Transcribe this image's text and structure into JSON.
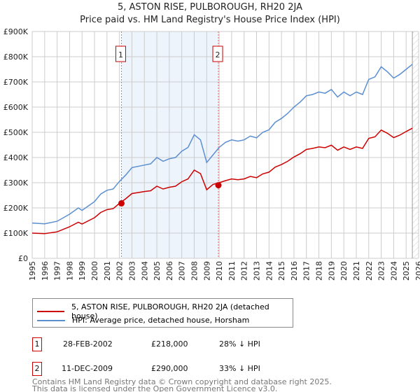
{
  "chart_data": {
    "type": "line",
    "title": "5, ASTON RISE, PULBOROUGH, RH20 2JA",
    "subtitle": "Price paid vs. HM Land Registry's House Price Index (HPI)",
    "xlim": [
      1995,
      2026
    ],
    "ylim": [
      0,
      900000
    ],
    "x_ticks": [
      "1995",
      "1996",
      "1997",
      "1998",
      "1999",
      "2000",
      "2001",
      "2002",
      "2003",
      "2004",
      "2005",
      "2006",
      "2007",
      "2008",
      "2009",
      "2010",
      "2011",
      "2012",
      "2013",
      "2014",
      "2015",
      "2016",
      "2017",
      "2018",
      "2019",
      "2020",
      "2021",
      "2022",
      "2023",
      "2024",
      "2025",
      "2026"
    ],
    "y_ticks": [
      {
        "v": 0,
        "label": "£0"
      },
      {
        "v": 100000,
        "label": "£100K"
      },
      {
        "v": 200000,
        "label": "£200K"
      },
      {
        "v": 300000,
        "label": "£300K"
      },
      {
        "v": 400000,
        "label": "£400K"
      },
      {
        "v": 500000,
        "label": "£500K"
      },
      {
        "v": 600000,
        "label": "£600K"
      },
      {
        "v": 700000,
        "label": "£700K"
      },
      {
        "v": 800000,
        "label": "£800K"
      },
      {
        "v": 900000,
        "label": "£900K"
      }
    ],
    "grid": true,
    "forecast_hatch_from": 2025.5,
    "shaded_range": [
      2002.16,
      2009.94
    ],
    "x": [
      1995,
      1996,
      1997,
      1998,
      1998.7,
      1999,
      2000,
      2000.5,
      2001,
      2001.5,
      2002,
      2002.5,
      2003,
      2004,
      2004.5,
      2005,
      2005.5,
      2006,
      2006.5,
      2007,
      2007.5,
      2008,
      2008.5,
      2009,
      2009.5,
      2010,
      2010.5,
      2011,
      2011.5,
      2012,
      2012.5,
      2013,
      2013.5,
      2014,
      2014.5,
      2015,
      2015.5,
      2016,
      2016.5,
      2017,
      2017.5,
      2018,
      2018.5,
      2019,
      2019.5,
      2020,
      2020.5,
      2021,
      2021.5,
      2022,
      2022.5,
      2023,
      2023.5,
      2024,
      2024.5,
      2025,
      2025.5
    ],
    "series": [
      {
        "name": "5, ASTON RISE, PULBOROUGH, RH20 2JA (detached house)",
        "color": "#cc0000",
        "values": [
          100,
          98,
          105,
          125,
          143,
          136,
          161,
          182,
          193,
          197,
          218,
          236,
          257,
          265,
          268,
          286,
          275,
          282,
          286,
          304,
          315,
          350,
          336,
          272,
          293,
          300,
          308,
          315,
          312,
          315,
          325,
          320,
          335,
          342,
          362,
          372,
          385,
          402,
          415,
          432,
          436,
          442,
          439,
          449,
          429,
          442,
          432,
          442,
          436,
          476,
          482,
          509,
          496,
          479,
          489,
          503,
          516
        ]
      },
      {
        "name": "HPI: Average price, detached house, Horsham",
        "color": "#5b8fd0",
        "values": [
          140,
          137,
          147,
          175,
          200,
          190,
          225,
          255,
          270,
          275,
          305,
          330,
          360,
          370,
          375,
          400,
          385,
          395,
          400,
          425,
          440,
          490,
          470,
          380,
          410,
          440,
          460,
          470,
          465,
          470,
          485,
          478,
          500,
          510,
          540,
          555,
          575,
          600,
          620,
          645,
          650,
          660,
          655,
          670,
          640,
          660,
          645,
          660,
          650,
          710,
          720,
          760,
          740,
          715,
          730,
          750,
          770
        ]
      }
    ],
    "value_unit": "thousand GBP",
    "sales": [
      {
        "num": "1",
        "x": 2002.16,
        "value": 218,
        "date": "28-FEB-2002",
        "price": "£218,000",
        "hpi": "28% ↓ HPI"
      },
      {
        "num": "2",
        "x": 2009.94,
        "value": 290,
        "date": "11-DEC-2009",
        "price": "£290,000",
        "hpi": "33% ↓ HPI"
      }
    ]
  },
  "legend": {
    "red_label": "5, ASTON RISE, PULBOROUGH, RH20 2JA (detached house)",
    "blue_label": "HPI: Average price, detached house, Horsham"
  },
  "footer": {
    "line1": "Contains HM Land Registry data © Crown copyright and database right 2025.",
    "line2": "This data is licensed under the Open Government Licence v3.0."
  }
}
